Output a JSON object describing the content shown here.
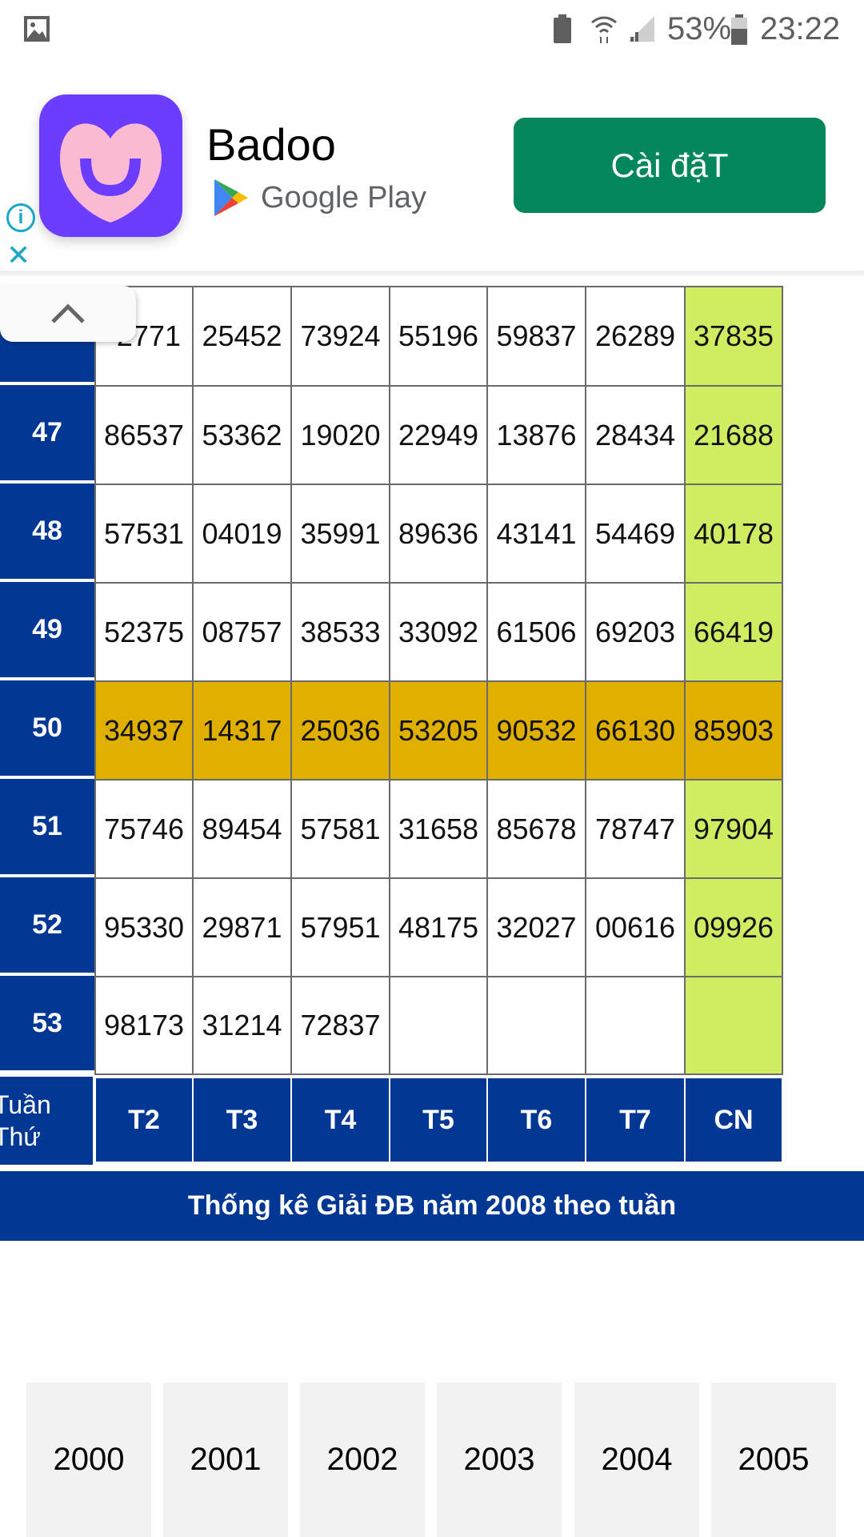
{
  "status_bar": {
    "battery_percent": "53%",
    "time": "23:22",
    "icons": [
      "gallery-icon",
      "battery-saver-icon",
      "wifi-icon",
      "signal-icon",
      "battery-icon"
    ]
  },
  "ad": {
    "app_name": "Badoo",
    "store": "Google Play",
    "install_label": "Cài đặT",
    "colors": {
      "icon_bg": "#6c3cff",
      "button": "#05875e"
    }
  },
  "table": {
    "rows": [
      {
        "week": "",
        "values": [
          "2771",
          "25452",
          "73924",
          "55196",
          "59837",
          "26289",
          "37835"
        ]
      },
      {
        "week": "47",
        "values": [
          "86537",
          "53362",
          "19020",
          "22949",
          "13876",
          "28434",
          "21688"
        ]
      },
      {
        "week": "48",
        "values": [
          "57531",
          "04019",
          "35991",
          "89636",
          "43141",
          "54469",
          "40178"
        ]
      },
      {
        "week": "49",
        "values": [
          "52375",
          "08757",
          "38533",
          "33092",
          "61506",
          "69203",
          "66419"
        ]
      },
      {
        "week": "50",
        "highlight": true,
        "values": [
          "34937",
          "14317",
          "25036",
          "53205",
          "90532",
          "66130",
          "85903"
        ]
      },
      {
        "week": "51",
        "values": [
          "75746",
          "89454",
          "57581",
          "31658",
          "85678",
          "78747",
          "97904"
        ]
      },
      {
        "week": "52",
        "values": [
          "95330",
          "29871",
          "57951",
          "48175",
          "32027",
          "00616",
          "09926"
        ]
      },
      {
        "week": "53",
        "values": [
          "98173",
          "31214",
          "72837",
          "",
          "",
          "",
          ""
        ]
      }
    ],
    "header": {
      "week_label": "Tuần Thứ",
      "days": [
        "T2",
        "T3",
        "T4",
        "T5",
        "T6",
        "T7",
        "CN"
      ]
    },
    "colors": {
      "header": "#023894",
      "sunday": "#d0ec62",
      "highlight": "#e0b000"
    }
  },
  "title": "Thống kê Giải ĐB năm 2008 theo tuần",
  "years": [
    "2000",
    "2001",
    "2002",
    "2003",
    "2004",
    "2005"
  ]
}
